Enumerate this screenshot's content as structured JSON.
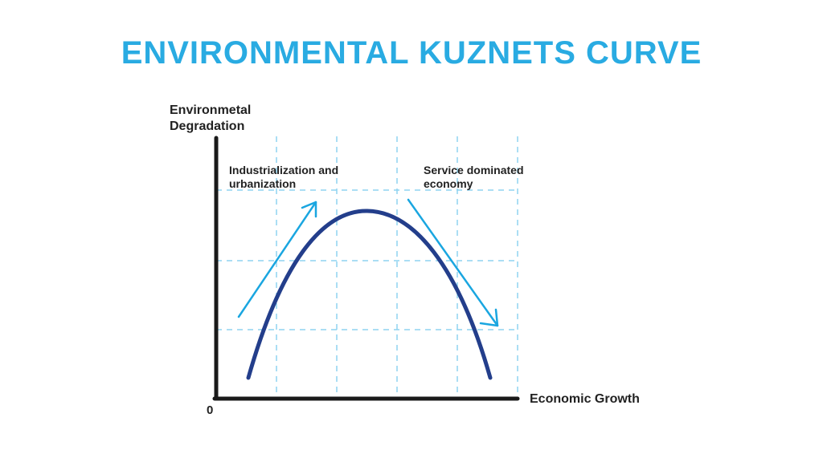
{
  "title": "ENVIRONMENTAL KUZNETS CURVE",
  "axes": {
    "y_label_line1": "Environmetal",
    "y_label_line2": "Degradation",
    "x_label": "Economic Growth",
    "origin": "0"
  },
  "annotations": {
    "rising_line1": "Industrialization and",
    "rising_line2": "urbanization",
    "falling_line1": "Service dominated",
    "falling_line2": "economy"
  },
  "colors": {
    "title": "#29abe2",
    "curve": "#233e8b",
    "arrow": "#1aa6e0",
    "grid": "#8fd3f0",
    "axis": "#1a1a1a",
    "text": "#222222"
  }
}
